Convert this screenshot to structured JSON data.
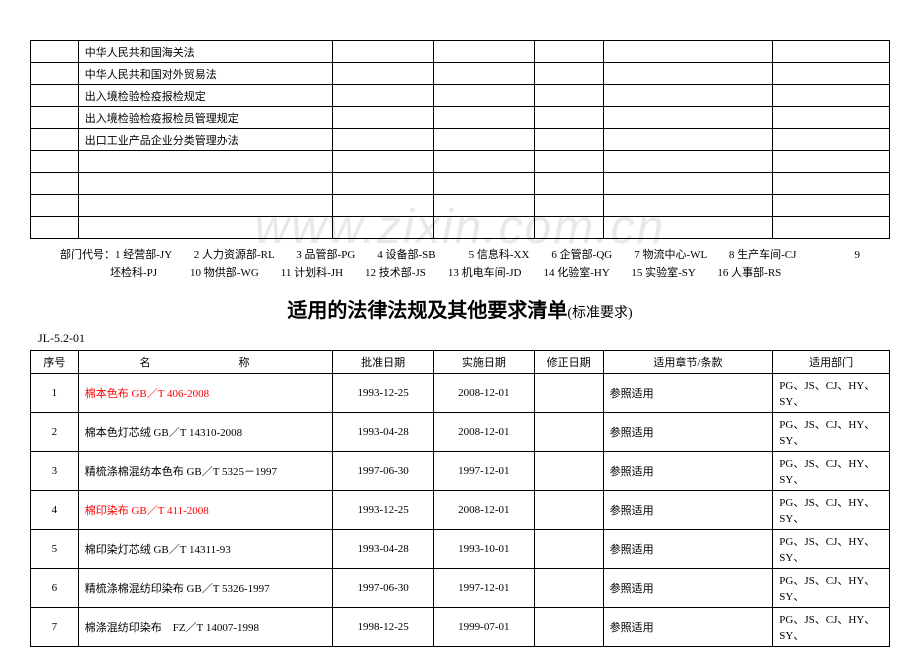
{
  "watermark": "www.zixin.com.cn",
  "top_items": [
    "中华人民共和国海关法",
    "中华人民共和国对外贸易法",
    "出入境检验检疫报检规定",
    "出入境检验检疫报检员管理规定",
    "出口工业产品企业分类管理办法",
    "",
    "",
    "",
    ""
  ],
  "dept_legend": {
    "line1_a": "部门代号：1 经营部-JY　　2 人力资源部-RL　　3 品管部-PG　　4 设备部-SB　　　5 信息科-XX　　6 企管部-QG　　7 物流中心-WL　　8 生产车间-CJ",
    "line1_b": "9",
    "line2": "坯检科-PJ　　　10 物供部-WG　　11 计划科-JH　　12 技术部-JS　　13 机电车间-JD　　14 化验室-HY　　15 实验室-SY　　16 人事部-RS"
  },
  "heading": "适用的法律法规及其他要求清单",
  "heading_sub": "(标准要求)",
  "doc_code": "JL-5.2-01",
  "headers": {
    "seq": "序号",
    "name": "名　　称",
    "approve": "批准日期",
    "impl": "实施日期",
    "revise": "修正日期",
    "chapter": "适用章节/条款",
    "dept": "适用部门"
  },
  "rows": [
    {
      "seq": "1",
      "name": "棉本色布 GB／T 406-2008",
      "approve": "1993-12-25",
      "impl": "2008-12-01",
      "revise": "",
      "chapter": "参照适用",
      "dept": "PG、JS、CJ、HY、SY、",
      "red": true
    },
    {
      "seq": "2",
      "name": "棉本色灯芯绒 GB／T 14310-2008",
      "approve": "1993-04-28",
      "impl": "2008-12-01",
      "revise": "",
      "chapter": "参照适用",
      "dept": "PG、JS、CJ、HY、SY、",
      "red": false
    },
    {
      "seq": "3",
      "name": "精梳涤棉混纺本色布 GB／T 5325－1997",
      "approve": "1997-06-30",
      "impl": "1997-12-01",
      "revise": "",
      "chapter": "参照适用",
      "dept": "PG、JS、CJ、HY、SY、",
      "red": false
    },
    {
      "seq": "4",
      "name": "棉印染布 GB／T 411-2008",
      "approve": "1993-12-25",
      "impl": "2008-12-01",
      "revise": "",
      "chapter": "参照适用",
      "dept": "PG、JS、CJ、HY、SY、",
      "red": true
    },
    {
      "seq": "5",
      "name": "棉印染灯芯绒 GB／T 14311-93",
      "approve": "1993-04-28",
      "impl": "1993-10-01",
      "revise": "",
      "chapter": "参照适用",
      "dept": "PG、JS、CJ、HY、SY、",
      "red": false
    },
    {
      "seq": "6",
      "name": "精梳涤棉混纺印染布 GB／T 5326-1997",
      "approve": "1997-06-30",
      "impl": "1997-12-01",
      "revise": "",
      "chapter": "参照适用",
      "dept": "PG、JS、CJ、HY、SY、",
      "red": false
    },
    {
      "seq": "7",
      "name": "棉涤混纺印染布　FZ／T 14007-1998",
      "approve": "1998-12-25",
      "impl": "1999-07-01",
      "revise": "",
      "chapter": "参照适用",
      "dept": "PG、JS、CJ、HY、SY、",
      "red": false
    }
  ]
}
